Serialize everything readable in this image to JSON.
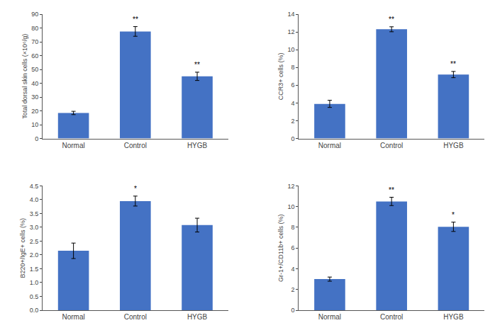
{
  "chart_data": [
    {
      "type": "bar",
      "ylabel": "Total dorsal skin cells (×10⁶/g)",
      "categories": [
        "Normal",
        "Control",
        "HYGB"
      ],
      "values": [
        18.5,
        77.5,
        45.0
      ],
      "errors": [
        1.2,
        3.5,
        3.0
      ],
      "color": "#4472C4",
      "ylim": [
        0,
        90
      ],
      "yticks": [
        0,
        10,
        20,
        30,
        40,
        50,
        60,
        70,
        80,
        90
      ],
      "annotations": [
        {
          "category": "Control",
          "text": "**"
        },
        {
          "category": "HYGB",
          "text": "**"
        }
      ],
      "grid": false
    },
    {
      "type": "bar",
      "ylabel": "CCR3+ cells (%)",
      "categories": [
        "Normal",
        "Control",
        "HYGB"
      ],
      "values": [
        3.9,
        12.3,
        7.2
      ],
      "errors": [
        0.4,
        0.28,
        0.35
      ],
      "color": "#4472C4",
      "ylim": [
        0,
        14
      ],
      "yticks": [
        0,
        2,
        4,
        6,
        8,
        10,
        12,
        14
      ],
      "annotations": [
        {
          "category": "Control",
          "text": "**"
        },
        {
          "category": "HYGB",
          "text": "**"
        }
      ],
      "grid": false
    },
    {
      "type": "bar",
      "ylabel": "B220+/IgE+ cells (%)",
      "categories": [
        "Normal",
        "Control",
        "HYGB"
      ],
      "values": [
        2.15,
        3.95,
        3.08
      ],
      "errors": [
        0.28,
        0.18,
        0.25
      ],
      "color": "#4472C4",
      "ylim": [
        0,
        4.5
      ],
      "yticks": [
        {
          "value": 0,
          "label": "0.0"
        },
        0.5,
        {
          "value": 1,
          "label": "1.0"
        },
        1.5,
        {
          "value": 2,
          "label": "2.0"
        },
        2.5,
        {
          "value": 3,
          "label": "3.0"
        },
        3.5,
        {
          "value": 4,
          "label": "4.0"
        },
        4.5
      ],
      "annotations": [
        {
          "category": "Control",
          "text": "*"
        }
      ],
      "grid": false
    },
    {
      "type": "bar",
      "ylabel": "Gr-1+/CD11b+ cells (%)",
      "categories": [
        "Normal",
        "Control",
        "HYGB"
      ],
      "values": [
        3.0,
        10.5,
        8.05
      ],
      "errors": [
        0.2,
        0.4,
        0.45
      ],
      "color": "#4472C4",
      "ylim": [
        0,
        12
      ],
      "yticks": [
        0,
        2,
        4,
        6,
        8,
        10,
        12
      ],
      "annotations": [
        {
          "category": "Control",
          "text": "**"
        },
        {
          "category": "HYGB",
          "text": "*"
        }
      ],
      "grid": false
    }
  ]
}
